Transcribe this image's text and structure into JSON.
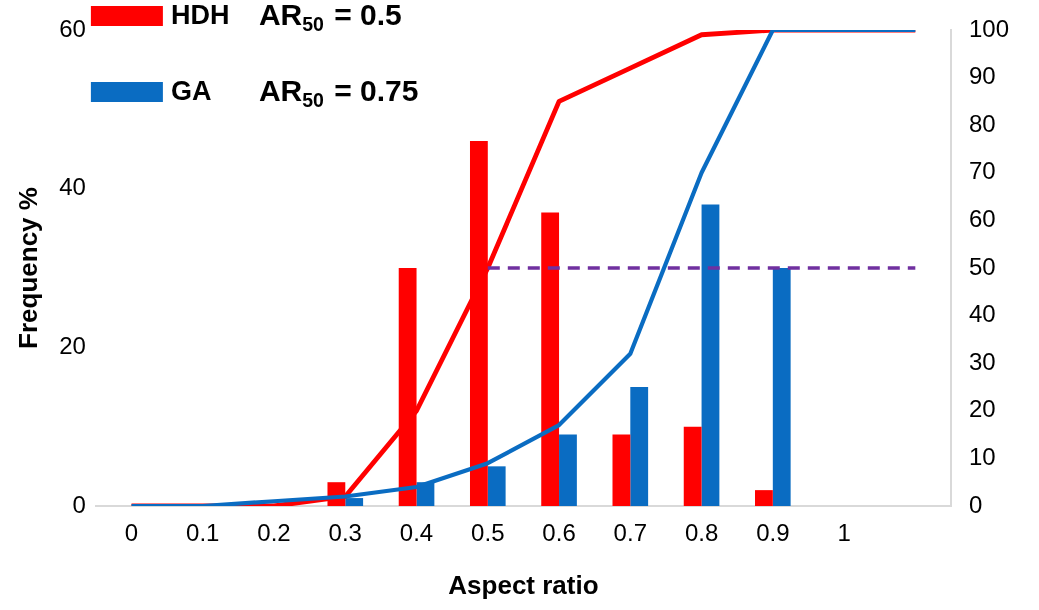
{
  "chart_data": {
    "type": "bar",
    "xlabel": "Aspect ratio",
    "ylabel": "Frequency %",
    "categories": [
      "0",
      "0.1",
      "0.2",
      "0.3",
      "0.4",
      "0.5",
      "0.6",
      "0.7",
      "0.8",
      "0.9",
      "1",
      null
    ],
    "series": [
      {
        "name": "HDH",
        "color": "#ff0000",
        "values": [
          0,
          0,
          0,
          3,
          30,
          46,
          37,
          9,
          10,
          2,
          null,
          null
        ]
      },
      {
        "name": "GA",
        "color": "#0a6cc2",
        "values": [
          0,
          0,
          0,
          1,
          3,
          5,
          9,
          15,
          38,
          30,
          null,
          null
        ]
      },
      {
        "type": "line",
        "axis": "y2",
        "color": "#ff0000",
        "values": [
          0,
          0,
          0,
          2,
          20,
          50,
          85,
          92,
          99,
          100,
          100,
          100
        ]
      },
      {
        "type": "line",
        "axis": "y2",
        "color": "#0a6cc2",
        "values": [
          0,
          0,
          1,
          2,
          4,
          9,
          17,
          32,
          70,
          100,
          100,
          100
        ]
      },
      {
        "type": "line",
        "axis": "y2",
        "color": "#7030a0",
        "line_style": "dashed",
        "values": [
          null,
          null,
          null,
          null,
          null,
          50,
          50,
          50,
          50,
          50,
          50,
          50
        ]
      }
    ],
    "ylim": [
      0,
      60
    ],
    "yticks": [
      0,
      20,
      40,
      60
    ],
    "y2lim": [
      0,
      100
    ],
    "y2ticks": [
      0,
      10,
      20,
      30,
      40,
      50,
      60,
      70,
      80,
      90,
      100
    ],
    "grid": false,
    "legend": "top left",
    "marker": "none",
    "annotations": [
      "AR$_{50}$ = 0.5",
      "AR$_{50}$ = 0.75"
    ]
  }
}
